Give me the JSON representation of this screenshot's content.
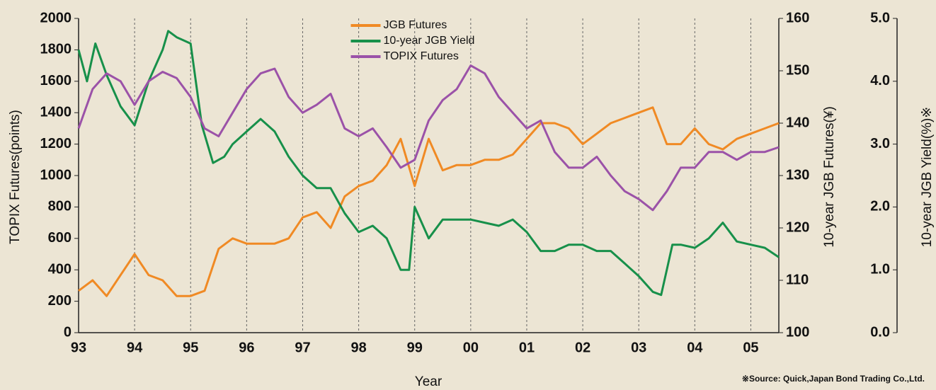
{
  "chart_data": {
    "type": "line",
    "xlabel": "Year",
    "ylabel": "TOPIX Futures(points)",
    "y2label": "10-year JGB Futures(¥)",
    "y3label": "10-year JGB Yield(%)※",
    "source": "※Source: Quick,Japan Bond Trading Co.,Ltd.",
    "xlim": [
      1993,
      2005.5
    ],
    "xticks": [
      {
        "value": 1993,
        "label": "93"
      },
      {
        "value": 1994,
        "label": "94"
      },
      {
        "value": 1995,
        "label": "95"
      },
      {
        "value": 1996,
        "label": "96"
      },
      {
        "value": 1997,
        "label": "97"
      },
      {
        "value": 1998,
        "label": "98"
      },
      {
        "value": 1999,
        "label": "99"
      },
      {
        "value": 2000,
        "label": "00"
      },
      {
        "value": 2001,
        "label": "01"
      },
      {
        "value": 2002,
        "label": "02"
      },
      {
        "value": 2003,
        "label": "03"
      },
      {
        "value": 2004,
        "label": "04"
      },
      {
        "value": 2005,
        "label": "05"
      }
    ],
    "ylim": [
      0,
      2000
    ],
    "yticks": [
      0,
      200,
      400,
      600,
      800,
      1000,
      1200,
      1400,
      1600,
      1800,
      2000
    ],
    "y2lim": [
      100,
      160
    ],
    "y2ticks": [
      100,
      110,
      120,
      130,
      140,
      150,
      160
    ],
    "y3lim": [
      0,
      5
    ],
    "y3ticks": [
      {
        "value": 0,
        "label": "0.0"
      },
      {
        "value": 1,
        "label": "1.0"
      },
      {
        "value": 2,
        "label": "2.0"
      },
      {
        "value": 3,
        "label": "3.0"
      },
      {
        "value": 4,
        "label": "4.0"
      },
      {
        "value": 5,
        "label": "5.0"
      }
    ],
    "grid": true,
    "legend": "upper center",
    "series": [
      {
        "name": "JGB Futures",
        "color": "#f08a24",
        "axis": "y2",
        "x": [
          1993,
          1993.25,
          1993.5,
          1993.75,
          1994,
          1994.25,
          1994.5,
          1994.75,
          1995,
          1995.25,
          1995.5,
          1995.75,
          1996,
          1996.25,
          1996.5,
          1996.75,
          1997,
          1997.25,
          1997.5,
          1997.75,
          1998,
          1998.25,
          1998.5,
          1998.75,
          1999,
          1999.25,
          1999.5,
          1999.75,
          2000,
          2000.25,
          2000.5,
          2000.75,
          2001,
          2001.25,
          2001.5,
          2001.75,
          2002,
          2002.25,
          2002.5,
          2002.75,
          2003,
          2003.25,
          2003.5,
          2003.75,
          2004,
          2004.25,
          2004.5,
          2004.75,
          2005,
          2005.25,
          2005.5
        ],
        "values": [
          108,
          110,
          107,
          111,
          115,
          111,
          110,
          107,
          107,
          108,
          116,
          118,
          117,
          117,
          117,
          118,
          122,
          123,
          120,
          126,
          128,
          129,
          132,
          137,
          128,
          137,
          131,
          132,
          132,
          133,
          133,
          134,
          137,
          140,
          140,
          139,
          136,
          138,
          140,
          141,
          142,
          143,
          136,
          136,
          139,
          136,
          135,
          137,
          138,
          139,
          140
        ]
      },
      {
        "name": "10-year JGB Yield",
        "color": "#17904a",
        "axis": "y3",
        "x": [
          1993,
          1993.15,
          1993.3,
          1993.5,
          1993.75,
          1994,
          1994.25,
          1994.5,
          1994.6,
          1994.75,
          1995,
          1995.2,
          1995.4,
          1995.6,
          1995.75,
          1996,
          1996.25,
          1996.5,
          1996.75,
          1997,
          1997.25,
          1997.5,
          1997.75,
          1998,
          1998.25,
          1998.5,
          1998.75,
          1998.9,
          1999,
          1999.25,
          1999.5,
          1999.75,
          2000,
          2000.25,
          2000.5,
          2000.75,
          2001,
          2001.25,
          2001.5,
          2001.75,
          2002,
          2002.25,
          2002.5,
          2002.75,
          2003,
          2003.25,
          2003.4,
          2003.5,
          2003.6,
          2003.75,
          2004,
          2004.25,
          2004.5,
          2004.75,
          2005,
          2005.25,
          2005.5
        ],
        "values": [
          4.5,
          4.0,
          4.6,
          4.1,
          3.6,
          3.3,
          4.0,
          4.5,
          4.8,
          4.7,
          4.6,
          3.3,
          2.7,
          2.8,
          3.0,
          3.2,
          3.4,
          3.2,
          2.8,
          2.5,
          2.3,
          2.3,
          1.9,
          1.6,
          1.7,
          1.5,
          1.0,
          1.0,
          2.0,
          1.5,
          1.8,
          1.8,
          1.8,
          1.75,
          1.7,
          1.8,
          1.6,
          1.3,
          1.3,
          1.4,
          1.4,
          1.3,
          1.3,
          1.1,
          0.9,
          0.65,
          0.6,
          1.0,
          1.4,
          1.4,
          1.35,
          1.5,
          1.75,
          1.45,
          1.4,
          1.35,
          1.2
        ]
      },
      {
        "name": "TOPIX Futures",
        "color": "#9b52a8",
        "axis": "y",
        "x": [
          1993,
          1993.25,
          1993.5,
          1993.75,
          1994,
          1994.25,
          1994.5,
          1994.75,
          1995,
          1995.25,
          1995.5,
          1995.75,
          1996,
          1996.25,
          1996.5,
          1996.75,
          1997,
          1997.25,
          1997.5,
          1997.75,
          1998,
          1998.25,
          1998.5,
          1998.75,
          1999,
          1999.25,
          1999.5,
          1999.75,
          2000,
          2000.25,
          2000.5,
          2000.75,
          2001,
          2001.25,
          2001.5,
          2001.75,
          2002,
          2002.25,
          2002.5,
          2002.75,
          2003,
          2003.25,
          2003.5,
          2003.75,
          2004,
          2004.25,
          2004.5,
          2004.75,
          2005,
          2005.25,
          2005.5
        ],
        "values": [
          1300,
          1550,
          1650,
          1600,
          1450,
          1600,
          1660,
          1620,
          1500,
          1300,
          1250,
          1400,
          1550,
          1650,
          1680,
          1500,
          1400,
          1450,
          1520,
          1300,
          1250,
          1300,
          1180,
          1050,
          1100,
          1350,
          1480,
          1550,
          1700,
          1650,
          1500,
          1400,
          1300,
          1350,
          1150,
          1050,
          1050,
          1120,
          1000,
          900,
          850,
          780,
          900,
          1050,
          1050,
          1150,
          1150,
          1100,
          1150,
          1150,
          1180
        ]
      }
    ]
  }
}
